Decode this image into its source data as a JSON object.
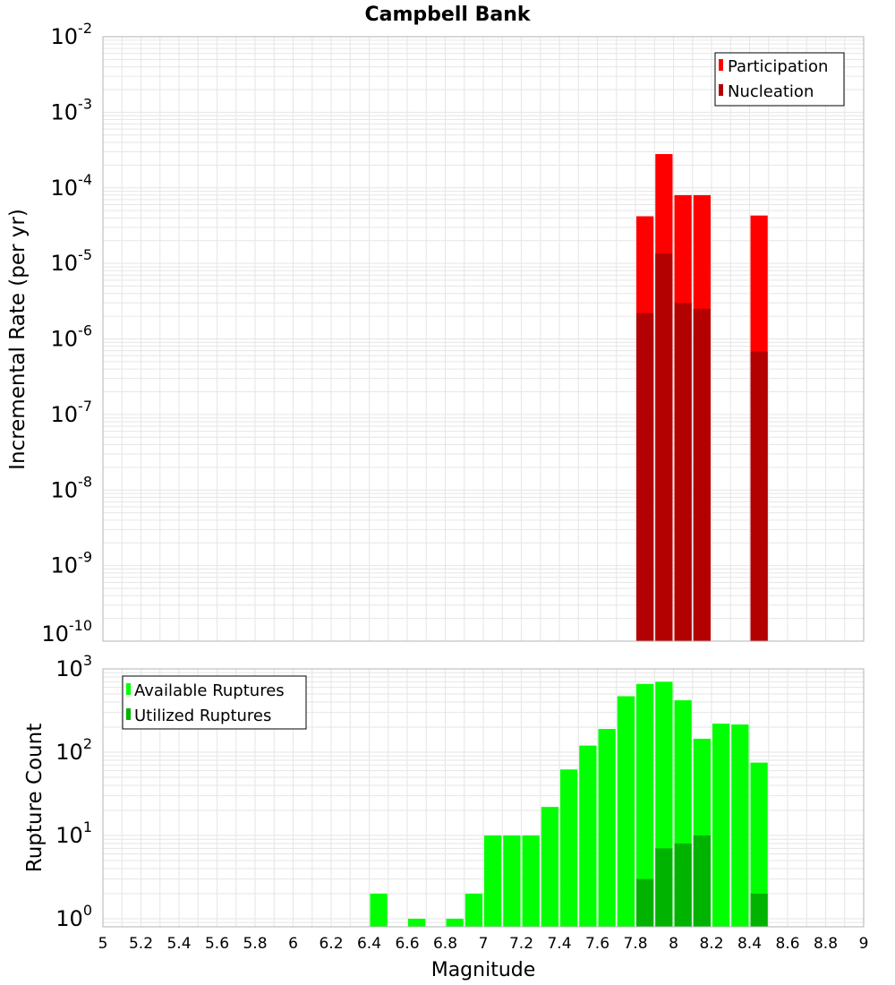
{
  "figure_title": "Campbell Bank",
  "xlabel": "Magnitude",
  "colors": {
    "participation": "#ff0000",
    "nucleation": "#b30000",
    "available": "#00ff00",
    "utilized": "#00b300",
    "grid": "#e6e6e6",
    "frame": "#b3b3b3"
  },
  "x_tick_labels": [
    "5",
    "5.2",
    "5.4",
    "5.6",
    "5.8",
    "6",
    "6.2",
    "6.4",
    "6.6",
    "6.8",
    "7",
    "7.2",
    "7.4",
    "7.6",
    "7.8",
    "8",
    "8.2",
    "8.4",
    "8.6",
    "8.8",
    "9"
  ],
  "chart_data": [
    {
      "type": "bar",
      "title": "Campbell Bank",
      "xlabel": "Magnitude",
      "ylabel": "Incremental Rate (per yr)",
      "yscale": "log",
      "xlim": [
        5,
        9
      ],
      "ylim": [
        1e-10,
        0.01
      ],
      "y_tick_exponents": [
        "-10",
        "-9",
        "-8",
        "-7",
        "-6",
        "-5",
        "-4",
        "-3",
        "-2"
      ],
      "legend": [
        "Participation",
        "Nucleation"
      ],
      "legend_position": "top-right",
      "series": [
        {
          "name": "Participation",
          "x": [
            7.85,
            7.95,
            8.05,
            8.15,
            8.45
          ],
          "values": [
            4.2e-05,
            0.00028,
            8e-05,
            8e-05,
            4.3e-05
          ]
        },
        {
          "name": "Nucleation",
          "x": [
            7.85,
            7.95,
            8.05,
            8.15,
            8.45
          ],
          "values": [
            2.2e-06,
            1.35e-05,
            3e-06,
            2.5e-06,
            6.8e-07
          ]
        }
      ]
    },
    {
      "type": "bar",
      "title": "",
      "xlabel": "Magnitude",
      "ylabel": "Rupture Count",
      "yscale": "log",
      "xlim": [
        5,
        9
      ],
      "ylim": [
        0.8,
        1000
      ],
      "y_tick_exponents": [
        "0",
        "1",
        "2",
        "3"
      ],
      "legend": [
        "Available Ruptures",
        "Utilized Ruptures"
      ],
      "legend_position": "top-left",
      "series": [
        {
          "name": "Available Ruptures",
          "x": [
            6.45,
            6.65,
            6.85,
            6.95,
            7.05,
            7.15,
            7.25,
            7.35,
            7.45,
            7.55,
            7.65,
            7.75,
            7.85,
            7.95,
            8.05,
            8.15,
            8.25,
            8.35,
            8.45
          ],
          "values": [
            2,
            1,
            1,
            2,
            10,
            10,
            10,
            22,
            62,
            120,
            190,
            470,
            660,
            700,
            420,
            145,
            220,
            215,
            75
          ]
        },
        {
          "name": "Utilized Ruptures",
          "x": [
            7.85,
            7.95,
            8.05,
            8.15,
            8.45
          ],
          "values": [
            3,
            7,
            8,
            10,
            2
          ]
        }
      ]
    }
  ]
}
